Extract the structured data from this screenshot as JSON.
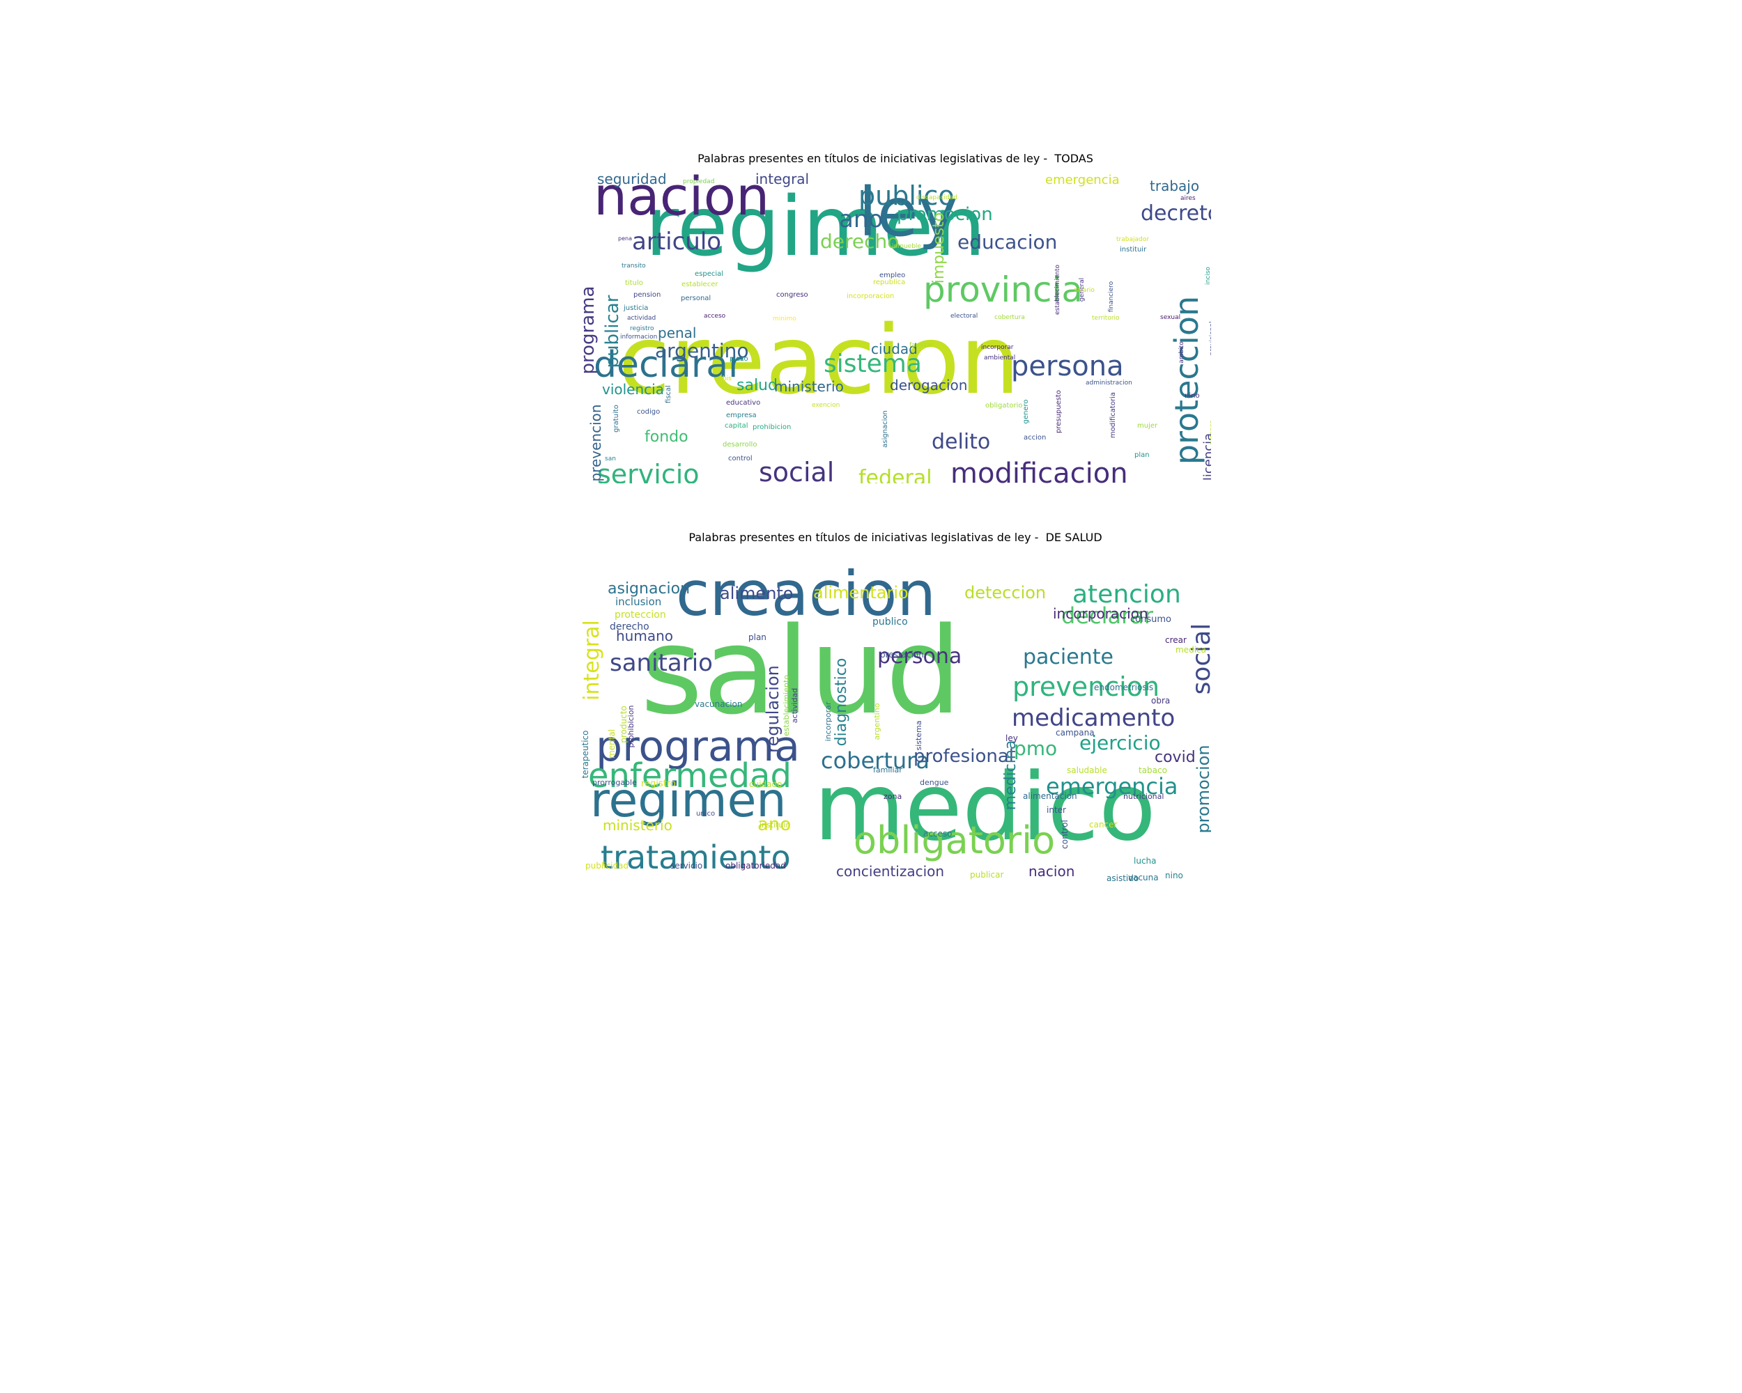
{
  "figure": {
    "panels": [
      {
        "title": "Palabras presentes en títulos de iniciativas legislativas de ley -  TODAS",
        "words": [
          {
            "text": "regimen",
            "color": "#21a585"
          },
          {
            "text": "creacion",
            "color": "#c5e021"
          },
          {
            "text": "nacion",
            "color": "#482475"
          },
          {
            "text": "ley",
            "color": "#2c718e"
          },
          {
            "text": "provincia",
            "color": "#5ec962"
          },
          {
            "text": "declarar",
            "color": "#2c728e"
          },
          {
            "text": "publico",
            "color": "#2a788e"
          },
          {
            "text": "modificacion",
            "color": "#472d7b"
          },
          {
            "text": "persona",
            "color": "#3b528b"
          },
          {
            "text": "servicio",
            "color": "#2fb47c"
          },
          {
            "text": "social",
            "color": "#46337e"
          },
          {
            "text": "sistema",
            "color": "#35b779"
          },
          {
            "text": "proteccion",
            "color": "#2a788e"
          },
          {
            "text": "articulo",
            "color": "#414487"
          },
          {
            "text": "decreto",
            "color": "#3e4a89"
          },
          {
            "text": "ano",
            "color": "#31688e"
          },
          {
            "text": "promocion",
            "color": "#22a884"
          },
          {
            "text": "programa",
            "color": "#443a83"
          },
          {
            "text": "publicar",
            "color": "#27808e"
          },
          {
            "text": "derecho",
            "color": "#7ad151"
          },
          {
            "text": "educacion",
            "color": "#3b528b"
          },
          {
            "text": "argentino",
            "color": "#365d8d"
          },
          {
            "text": "delito",
            "color": "#3e4989"
          },
          {
            "text": "federal",
            "color": "#b5de2b"
          },
          {
            "text": "fondo",
            "color": "#3fbc73"
          },
          {
            "text": "violencia",
            "color": "#21918c"
          },
          {
            "text": "salud",
            "color": "#20a386"
          },
          {
            "text": "ministerio",
            "color": "#31688e"
          },
          {
            "text": "derogacion",
            "color": "#3b528b"
          },
          {
            "text": "penal",
            "color": "#2d708e"
          },
          {
            "text": "ciudad",
            "color": "#2d708e"
          },
          {
            "text": "seguridad",
            "color": "#31688e"
          },
          {
            "text": "integral",
            "color": "#3f4788"
          },
          {
            "text": "emergencia",
            "color": "#d0e11c"
          },
          {
            "text": "trabajo",
            "color": "#31688e"
          },
          {
            "text": "impuesto",
            "color": "#8fd744"
          },
          {
            "text": "prevencion",
            "color": "#33638d"
          },
          {
            "text": "licencia",
            "color": "#433e85"
          },
          {
            "text": "propiedad",
            "color": "#7ad151"
          },
          {
            "text": "aires",
            "color": "#481f70"
          },
          {
            "text": "discapacidad",
            "color": "#b8de29"
          },
          {
            "text": "trabajador",
            "color": "#d2e21b"
          },
          {
            "text": "instituir",
            "color": "#2c728e"
          },
          {
            "text": "pena",
            "color": "#46327e"
          },
          {
            "text": "inmueble",
            "color": "#a5db36"
          },
          {
            "text": "transito",
            "color": "#2a788e"
          },
          {
            "text": "especial",
            "color": "#21918c"
          },
          {
            "text": "empleo",
            "color": "#3b528b"
          },
          {
            "text": "establecimiento",
            "color": "#472c7a"
          },
          {
            "text": "general",
            "color": "#453781"
          },
          {
            "text": "financiero",
            "color": "#3b528b"
          },
          {
            "text": "inciso",
            "color": "#1f9e89"
          },
          {
            "text": "titulo",
            "color": "#addc30"
          },
          {
            "text": "establecer",
            "color": "#b5de2b"
          },
          {
            "text": "republica",
            "color": "#cde11d"
          },
          {
            "text": "pension",
            "color": "#3f4788"
          },
          {
            "text": "congreso",
            "color": "#46307e"
          },
          {
            "text": "incorporacion",
            "color": "#d5e21a"
          },
          {
            "text": "salario",
            "color": "#c2df23"
          },
          {
            "text": "personal",
            "color": "#31688e"
          },
          {
            "text": "justicia",
            "color": "#2a788e"
          },
          {
            "text": "acceso",
            "color": "#481f70"
          },
          {
            "text": "minimo",
            "color": "#fde725"
          },
          {
            "text": "electoral",
            "color": "#3b528b"
          },
          {
            "text": "cobertura",
            "color": "#a0da39"
          },
          {
            "text": "territorio",
            "color": "#b8de29"
          },
          {
            "text": "sexual",
            "color": "#482071"
          },
          {
            "text": "actividad",
            "color": "#3e4a89"
          },
          {
            "text": "registro",
            "color": "#2a788e"
          },
          {
            "text": "informacion",
            "color": "#3b528b"
          },
          {
            "text": "familiar",
            "color": "#addc30"
          },
          {
            "text": "incorporar",
            "color": "#482575"
          },
          {
            "text": "ambiental",
            "color": "#46307e"
          },
          {
            "text": "plazo",
            "color": "#21918c"
          },
          {
            "text": "provisional",
            "color": "#3e4a89"
          },
          {
            "text": "ambito",
            "color": "#453781"
          },
          {
            "text": "administracion",
            "color": "#3b528b"
          },
          {
            "text": "bis",
            "color": "#d8e219"
          },
          {
            "text": "educativo",
            "color": "#46327e"
          },
          {
            "text": "exencion",
            "color": "#c8e020"
          },
          {
            "text": "obligatorio",
            "color": "#9fda3a"
          },
          {
            "text": "fiscal",
            "color": "#31688e"
          },
          {
            "text": "gratuito",
            "color": "#2c728e"
          },
          {
            "text": "codigo",
            "color": "#3b528b"
          },
          {
            "text": "empresa",
            "color": "#26828e"
          },
          {
            "text": "capital",
            "color": "#29af7f"
          },
          {
            "text": "prohibicion",
            "color": "#25ab82"
          },
          {
            "text": "asignacion",
            "color": "#2d708e"
          },
          {
            "text": "genero",
            "color": "#21918c"
          },
          {
            "text": "presupuesto",
            "color": "#482878"
          },
          {
            "text": "modificatoria",
            "color": "#453781"
          },
          {
            "text": "mujer",
            "color": "#9bd93c"
          },
          {
            "text": "desarrollo",
            "color": "#8bd646"
          },
          {
            "text": "control",
            "color": "#3b528b"
          },
          {
            "text": "accion",
            "color": "#3b528b"
          },
          {
            "text": "plan",
            "color": "#21918c"
          },
          {
            "text": "san",
            "color": "#26828e"
          },
          {
            "text": "nino",
            "color": "#46307e"
          },
          {
            "text": "defensa",
            "color": "#b5de2b"
          }
        ]
      },
      {
        "title": "Palabras presentes en títulos de iniciativas legislativas de ley -  DE SALUD",
        "words": [
          {
            "text": "salud",
            "color": "#5ec962"
          },
          {
            "text": "medico",
            "color": "#35b779"
          },
          {
            "text": "creacion",
            "color": "#31688e"
          },
          {
            "text": "regimen",
            "color": "#2c728e"
          },
          {
            "text": "programa",
            "color": "#3b528b"
          },
          {
            "text": "obligatorio",
            "color": "#7ad151"
          },
          {
            "text": "enfermedad",
            "color": "#35b779"
          },
          {
            "text": "tratamiento",
            "color": "#287d8e"
          },
          {
            "text": "prevencion",
            "color": "#2fb47c"
          },
          {
            "text": "medicamento",
            "color": "#414487"
          },
          {
            "text": "social",
            "color": "#3e4989"
          },
          {
            "text": "cobertura",
            "color": "#2c718e"
          },
          {
            "text": "atencion",
            "color": "#29af7f"
          },
          {
            "text": "declarar",
            "color": "#52c569"
          },
          {
            "text": "emergencia",
            "color": "#21918c"
          },
          {
            "text": "sanitario",
            "color": "#3f4788"
          },
          {
            "text": "persona",
            "color": "#46337e"
          },
          {
            "text": "paciente",
            "color": "#2a788e"
          },
          {
            "text": "integral",
            "color": "#d8e219"
          },
          {
            "text": "ejercicio",
            "color": "#1fa088"
          },
          {
            "text": "profesional",
            "color": "#3b528b"
          },
          {
            "text": "pmo",
            "color": "#35b779"
          },
          {
            "text": "promocion",
            "color": "#2a788e"
          },
          {
            "text": "alimentario",
            "color": "#d0e11c"
          },
          {
            "text": "deteccion",
            "color": "#b8de29"
          },
          {
            "text": "alimento",
            "color": "#3e4a89"
          },
          {
            "text": "asignacion",
            "color": "#2c728e"
          },
          {
            "text": "incorporacion",
            "color": "#482878"
          },
          {
            "text": "humano",
            "color": "#3e4a89"
          },
          {
            "text": "regulacion",
            "color": "#3f4788"
          },
          {
            "text": "diagnostico",
            "color": "#26828e"
          },
          {
            "text": "medicina",
            "color": "#27808e"
          },
          {
            "text": "ano",
            "color": "#d5e21a"
          },
          {
            "text": "ministerio",
            "color": "#c8e020"
          },
          {
            "text": "concientizacion",
            "color": "#433e85"
          },
          {
            "text": "nacion",
            "color": "#472d7b"
          },
          {
            "text": "covid",
            "color": "#46327e"
          },
          {
            "text": "inclusion",
            "color": "#2c728e"
          },
          {
            "text": "proteccion",
            "color": "#c5e021"
          },
          {
            "text": "derecho",
            "color": "#3b528b"
          },
          {
            "text": "publico",
            "color": "#2a788e"
          },
          {
            "text": "consumo",
            "color": "#3b528b"
          },
          {
            "text": "plan",
            "color": "#3e4a89"
          },
          {
            "text": "crear",
            "color": "#482475"
          },
          {
            "text": "medica",
            "color": "#b5de2b"
          },
          {
            "text": "prestacion",
            "color": "#3b528b"
          },
          {
            "text": "endometriosis",
            "color": "#2c728e"
          },
          {
            "text": "obra",
            "color": "#453781"
          },
          {
            "text": "vacunacion",
            "color": "#2a788e"
          },
          {
            "text": "establecimiento",
            "color": "#8bd646"
          },
          {
            "text": "actividad",
            "color": "#433e85"
          },
          {
            "text": "incorporar",
            "color": "#2d708e"
          },
          {
            "text": "argentino",
            "color": "#b8de29"
          },
          {
            "text": "sistema",
            "color": "#3e4a89"
          },
          {
            "text": "campana",
            "color": "#3b528b"
          },
          {
            "text": "ley",
            "color": "#46327e"
          },
          {
            "text": "terapeutico",
            "color": "#2a788e"
          },
          {
            "text": "mental",
            "color": "#c8e020"
          },
          {
            "text": "producto",
            "color": "#b5de2b"
          },
          {
            "text": "prohibicion",
            "color": "#46337e"
          },
          {
            "text": "familiar",
            "color": "#2d708e"
          },
          {
            "text": "saludable",
            "color": "#b8de29"
          },
          {
            "text": "tabaco",
            "color": "#a5db36"
          },
          {
            "text": "prorrogable",
            "color": "#3b528b"
          },
          {
            "text": "registro",
            "color": "#d2e21b"
          },
          {
            "text": "cuidado",
            "color": "#b5de2b"
          },
          {
            "text": "dengue",
            "color": "#3b528b"
          },
          {
            "text": "alimentacion",
            "color": "#31688e"
          },
          {
            "text": "nutricional",
            "color": "#453781"
          },
          {
            "text": "zona",
            "color": "#482878"
          },
          {
            "text": "inter",
            "color": "#3b528b"
          },
          {
            "text": "cancer",
            "color": "#c8e020"
          },
          {
            "text": "unico",
            "color": "#3e4a89"
          },
          {
            "text": "instituir",
            "color": "#b5de2b"
          },
          {
            "text": "acceso",
            "color": "#2a788e"
          },
          {
            "text": "control",
            "color": "#3b528b"
          },
          {
            "text": "lucha",
            "color": "#21918c"
          },
          {
            "text": "publicidad",
            "color": "#d0e11c"
          },
          {
            "text": "servicio",
            "color": "#3b528b"
          },
          {
            "text": "obligatoriedad",
            "color": "#482878"
          },
          {
            "text": "vacuna",
            "color": "#2a788e"
          },
          {
            "text": "publicar",
            "color": "#b8de29"
          },
          {
            "text": "asistido",
            "color": "#2c728e"
          },
          {
            "text": "nino",
            "color": "#26828e"
          }
        ]
      }
    ]
  }
}
